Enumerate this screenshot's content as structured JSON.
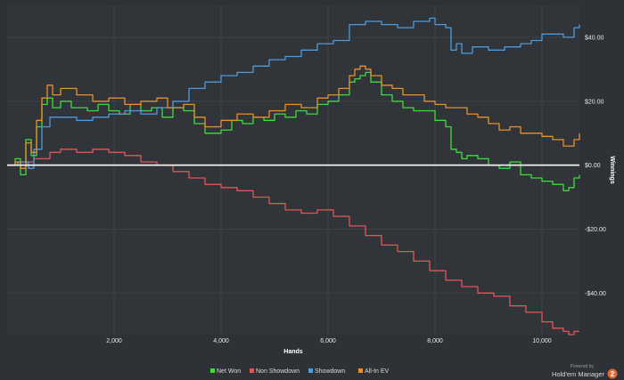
{
  "chart_data": {
    "type": "line",
    "xlabel": "Hands",
    "ylabel": "Winnings",
    "xlim": [
      0,
      10700
    ],
    "ylim": [
      -53,
      50
    ],
    "x_ticks": [
      2000,
      4000,
      6000,
      8000,
      10000
    ],
    "x_tick_labels": [
      "2,000",
      "4,000",
      "6,000",
      "8,000",
      "10,000"
    ],
    "y_ticks": [
      40,
      20,
      0,
      -20,
      -40
    ],
    "y_tick_labels": [
      "$40.00",
      "$20.00",
      "$0.00",
      "-$20.00",
      "-$40.00"
    ],
    "grid": true,
    "legend_position": "bottom",
    "series": [
      {
        "name": "Net Won",
        "color": "#3ddc3d",
        "x": [
          0,
          150,
          250,
          350,
          450,
          550,
          650,
          750,
          850,
          1000,
          1200,
          1500,
          1700,
          1900,
          2100,
          2300,
          2500,
          2700,
          2900,
          3100,
          3300,
          3500,
          3700,
          3850,
          4000,
          4200,
          4400,
          4600,
          4800,
          5000,
          5200,
          5400,
          5600,
          5800,
          6000,
          6200,
          6400,
          6500,
          6600,
          6700,
          6800,
          7000,
          7200,
          7400,
          7600,
          7800,
          8000,
          8200,
          8300,
          8400,
          8500,
          8600,
          8800,
          9000,
          9200,
          9400,
          9600,
          9800,
          10000,
          10200,
          10400,
          10500,
          10600,
          10700
        ],
        "y": [
          0,
          2,
          -3,
          8,
          3,
          12,
          19,
          21,
          18,
          20,
          18,
          17,
          19,
          17,
          16,
          19,
          17,
          18,
          15,
          18,
          17,
          13,
          10,
          10,
          11,
          14,
          13,
          15,
          14,
          16,
          15,
          17,
          16,
          19,
          20,
          22,
          26,
          27,
          28,
          29,
          26,
          22,
          20,
          18,
          17,
          17,
          14,
          12,
          5,
          4,
          2,
          3,
          2,
          0,
          -1,
          1,
          -3,
          -4,
          -5,
          -6,
          -8,
          -7,
          -4,
          -3
        ]
      },
      {
        "name": "Non Showdown",
        "color": "#e05757",
        "x": [
          0,
          200,
          500,
          800,
          1000,
          1300,
          1600,
          1900,
          2200,
          2500,
          2800,
          3100,
          3400,
          3700,
          4000,
          4300,
          4600,
          4900,
          5200,
          5500,
          5800,
          6100,
          6400,
          6700,
          7000,
          7300,
          7600,
          7900,
          8200,
          8500,
          8800,
          9100,
          9400,
          9700,
          10000,
          10200,
          10400,
          10500,
          10600,
          10700
        ],
        "y": [
          0,
          1,
          2,
          4,
          5,
          4,
          5,
          4,
          3,
          1,
          0,
          -2,
          -4,
          -6,
          -7,
          -8,
          -10,
          -12,
          -14,
          -15,
          -14,
          -16,
          -19,
          -22,
          -25,
          -27,
          -30,
          -33,
          -36,
          -38,
          -40,
          -41,
          -44,
          -46,
          -49,
          -51,
          -52,
          -53,
          -52,
          -52
        ]
      },
      {
        "name": "Showdown",
        "color": "#4b9be0",
        "x": [
          0,
          200,
          400,
          500,
          650,
          800,
          1000,
          1300,
          1600,
          1900,
          2200,
          2500,
          2800,
          3100,
          3400,
          3700,
          4000,
          4300,
          4600,
          4900,
          5200,
          5500,
          5800,
          6100,
          6400,
          6500,
          6700,
          7000,
          7300,
          7600,
          7900,
          8000,
          8200,
          8300,
          8400,
          8500,
          8700,
          9000,
          9300,
          9600,
          9800,
          10000,
          10200,
          10400,
          10600,
          10700
        ],
        "y": [
          0,
          1,
          -1,
          5,
          12,
          15,
          15,
          14,
          15,
          16,
          17,
          16,
          18,
          20,
          24,
          26,
          28,
          29,
          31,
          33,
          34,
          36,
          38,
          39,
          44,
          44,
          45,
          44,
          43,
          45,
          46,
          44,
          43,
          36,
          38,
          35,
          37,
          36,
          37,
          38,
          39,
          41,
          41,
          40,
          43,
          44
        ]
      },
      {
        "name": "All-In EV",
        "color": "#e8902c",
        "x": [
          0,
          150,
          250,
          350,
          450,
          550,
          650,
          750,
          850,
          1000,
          1300,
          1600,
          1900,
          2200,
          2500,
          2800,
          3000,
          3300,
          3500,
          3700,
          3850,
          4000,
          4300,
          4600,
          4900,
          5200,
          5500,
          5800,
          6000,
          6200,
          6400,
          6500,
          6600,
          6700,
          6800,
          7000,
          7200,
          7400,
          7600,
          7800,
          8000,
          8200,
          8400,
          8600,
          8800,
          9000,
          9200,
          9400,
          9600,
          9800,
          10000,
          10200,
          10400,
          10600,
          10700
        ],
        "y": [
          0,
          1,
          -1,
          7,
          4,
          14,
          21,
          25,
          22,
          24,
          22,
          20,
          21,
          19,
          20,
          21,
          18,
          19,
          15,
          12,
          12,
          14,
          16,
          15,
          17,
          19,
          18,
          21,
          22,
          24,
          28,
          30,
          31,
          30,
          28,
          25,
          24,
          22,
          22,
          20,
          19,
          18,
          18,
          16,
          15,
          13,
          11,
          12,
          10,
          10,
          9,
          8,
          6,
          8,
          10
        ]
      }
    ]
  },
  "branding": {
    "powered_by": "Powered by",
    "product": "Hold'em Manager",
    "badge": "2"
  }
}
